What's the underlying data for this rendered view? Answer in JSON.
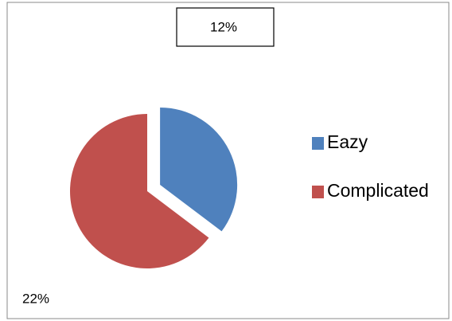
{
  "chart_data": {
    "type": "pie",
    "categories": [
      "Eazy",
      "Complicated"
    ],
    "values": [
      12,
      22
    ],
    "value_labels": [
      "12%",
      "22%"
    ],
    "colors": [
      "#4f81bd",
      "#c0504d"
    ],
    "legend": "right"
  }
}
